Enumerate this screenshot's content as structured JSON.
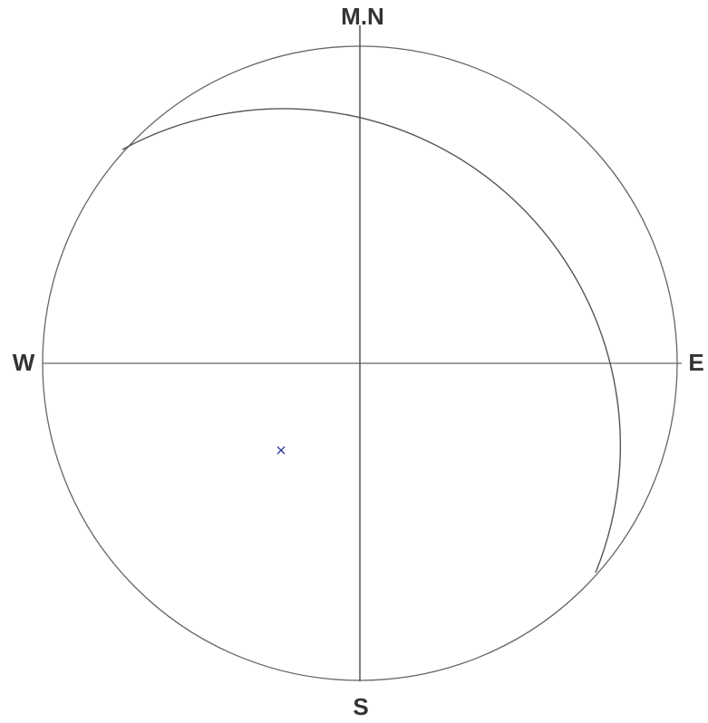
{
  "labels": {
    "north": "M.N",
    "west": "W",
    "east": "E",
    "south": "S"
  }
}
